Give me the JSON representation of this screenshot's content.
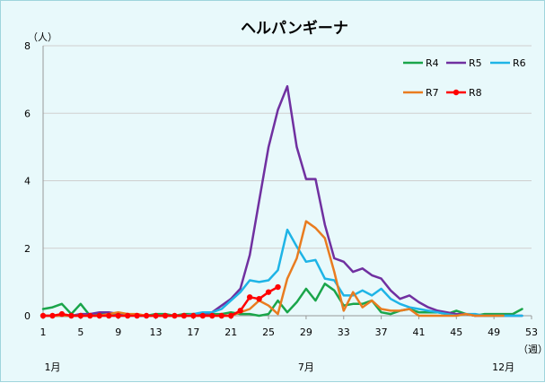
{
  "chart_data": {
    "type": "line",
    "title": "ヘルパンギーナ",
    "y_unit_label": "（人）",
    "x_unit_label": "（週）",
    "ylim": [
      0,
      8
    ],
    "y_ticks": [
      0,
      2,
      4,
      6,
      8
    ],
    "xlim": [
      1,
      53
    ],
    "x_ticks": [
      1,
      5,
      9,
      13,
      17,
      21,
      25,
      29,
      33,
      37,
      41,
      45,
      49,
      53
    ],
    "month_labels": [
      {
        "label": "1月",
        "week": 2
      },
      {
        "label": "7月",
        "week": 29
      },
      {
        "label": "12月",
        "week": 50
      }
    ],
    "grid": true,
    "legend_position": "top-right",
    "series": [
      {
        "name": "R4",
        "color": "#1aa54a",
        "marker": "none",
        "x": [
          1,
          2,
          3,
          4,
          5,
          6,
          7,
          8,
          9,
          10,
          11,
          12,
          13,
          14,
          15,
          16,
          17,
          18,
          19,
          20,
          21,
          22,
          23,
          24,
          25,
          26,
          27,
          28,
          29,
          30,
          31,
          32,
          33,
          34,
          35,
          36,
          37,
          38,
          39,
          40,
          41,
          42,
          43,
          44,
          45,
          46,
          47,
          48,
          49,
          50,
          51,
          52
        ],
        "values": [
          0.2,
          0.25,
          0.35,
          0.05,
          0.35,
          0.0,
          0.05,
          0.05,
          0.05,
          0.05,
          0.0,
          0.0,
          0.05,
          0.05,
          0.0,
          0.05,
          0.05,
          0.05,
          0.05,
          0.05,
          0.1,
          0.05,
          0.05,
          0.0,
          0.05,
          0.45,
          0.1,
          0.4,
          0.8,
          0.45,
          0.95,
          0.75,
          0.3,
          0.35,
          0.35,
          0.45,
          0.1,
          0.05,
          0.15,
          0.2,
          0.1,
          0.1,
          0.1,
          0.05,
          0.15,
          0.05,
          0.0,
          0.05,
          0.05,
          0.05,
          0.05,
          0.2
        ]
      },
      {
        "name": "R5",
        "color": "#7030a0",
        "marker": "none",
        "x": [
          1,
          2,
          3,
          4,
          5,
          6,
          7,
          8,
          9,
          10,
          11,
          12,
          13,
          14,
          15,
          16,
          17,
          18,
          19,
          20,
          21,
          22,
          23,
          24,
          25,
          26,
          27,
          28,
          29,
          30,
          31,
          32,
          33,
          34,
          35,
          36,
          37,
          38,
          39,
          40,
          41,
          42,
          43,
          44,
          45,
          46,
          47,
          48,
          49,
          50,
          51,
          52
        ],
        "values": [
          0.0,
          0.0,
          0.0,
          0.0,
          0.05,
          0.05,
          0.1,
          0.1,
          0.05,
          0.05,
          0.0,
          0.0,
          0.0,
          0.0,
          0.0,
          0.0,
          0.0,
          0.05,
          0.1,
          0.3,
          0.5,
          0.8,
          1.8,
          3.4,
          5.0,
          6.1,
          6.8,
          5.0,
          4.05,
          4.05,
          2.7,
          1.7,
          1.6,
          1.3,
          1.4,
          1.2,
          1.1,
          0.75,
          0.5,
          0.6,
          0.4,
          0.25,
          0.15,
          0.1,
          0.05,
          0.05,
          0.0,
          0.0,
          0.0,
          0.0,
          0.0,
          0.0
        ]
      },
      {
        "name": "R6",
        "color": "#1eb4e6",
        "marker": "none",
        "x": [
          1,
          2,
          3,
          4,
          5,
          6,
          7,
          8,
          9,
          10,
          11,
          12,
          13,
          14,
          15,
          16,
          17,
          18,
          19,
          20,
          21,
          22,
          23,
          24,
          25,
          26,
          27,
          28,
          29,
          30,
          31,
          32,
          33,
          34,
          35,
          36,
          37,
          38,
          39,
          40,
          41,
          42,
          43,
          44,
          45,
          46,
          47,
          48,
          49,
          50,
          51,
          52
        ],
        "values": [
          0.0,
          0.0,
          0.0,
          0.0,
          0.0,
          0.0,
          0.0,
          0.0,
          0.0,
          0.0,
          0.0,
          0.0,
          0.0,
          0.0,
          0.0,
          0.0,
          0.05,
          0.1,
          0.1,
          0.2,
          0.45,
          0.7,
          1.05,
          1.0,
          1.05,
          1.35,
          2.55,
          2.05,
          1.6,
          1.65,
          1.1,
          1.05,
          0.6,
          0.6,
          0.75,
          0.6,
          0.8,
          0.5,
          0.35,
          0.25,
          0.2,
          0.15,
          0.1,
          0.05,
          0.0,
          0.05,
          0.05,
          0.0,
          0.0,
          0.0,
          0.0,
          0.0
        ]
      },
      {
        "name": "R7",
        "color": "#e97c20",
        "marker": "none",
        "x": [
          1,
          2,
          3,
          4,
          5,
          6,
          7,
          8,
          9,
          10,
          11,
          12,
          13,
          14,
          15,
          16,
          17,
          18,
          19,
          20,
          21,
          22,
          23,
          24,
          25,
          26,
          27,
          28,
          29,
          30,
          31,
          32,
          33,
          34,
          35,
          36,
          37,
          38,
          39,
          40,
          41,
          42,
          43,
          44,
          45,
          46,
          47,
          48,
          49,
          50
        ],
        "values": [
          0.0,
          0.0,
          0.0,
          0.0,
          0.0,
          0.0,
          0.0,
          0.05,
          0.1,
          0.05,
          0.05,
          0.0,
          0.0,
          0.0,
          0.0,
          0.0,
          0.0,
          0.0,
          0.0,
          0.0,
          0.0,
          0.1,
          0.2,
          0.45,
          0.3,
          0.05,
          1.1,
          1.7,
          2.8,
          2.6,
          2.3,
          1.3,
          0.15,
          0.7,
          0.25,
          0.45,
          0.2,
          0.15,
          0.15,
          0.2,
          0.0,
          0.0,
          0.0,
          0.0,
          0.0,
          0.05,
          0.0,
          0.0,
          0.0,
          0.0
        ]
      },
      {
        "name": "R8",
        "color": "#ff0000",
        "marker": "circle",
        "x": [
          1,
          2,
          3,
          4,
          5,
          6,
          7,
          8,
          9,
          10,
          11,
          12,
          13,
          14,
          15,
          16,
          17,
          18,
          19,
          20,
          21,
          22,
          23,
          24,
          25,
          26
        ],
        "values": [
          0.0,
          0.0,
          0.05,
          0.0,
          0.0,
          0.0,
          0.0,
          0.0,
          0.0,
          0.0,
          0.0,
          0.0,
          0.0,
          0.0,
          0.0,
          0.0,
          0.0,
          0.0,
          0.0,
          0.0,
          0.0,
          0.15,
          0.55,
          0.5,
          0.7,
          0.85
        ]
      }
    ]
  }
}
